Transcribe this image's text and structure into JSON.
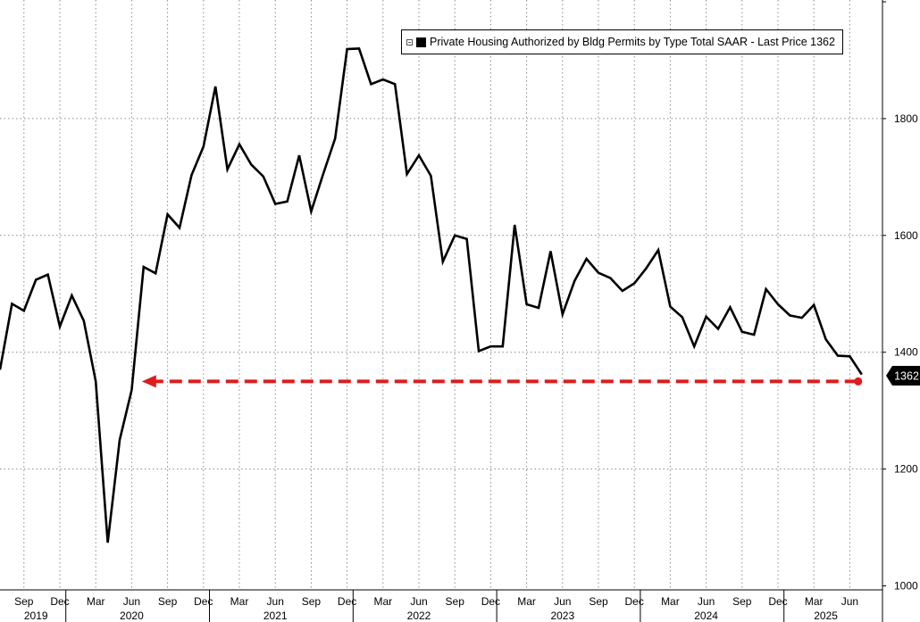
{
  "chart_data": {
    "type": "line",
    "legend_text": "Private Housing Authorized by Bldg Permits by Type Total SAAR - Last Price 1362",
    "last_value_label": "1362",
    "series_color": "#000000",
    "annotation_color": "#dd1c1c",
    "ylim": [
      1000,
      2000
    ],
    "y_ticks": [
      "1000",
      "1200",
      "1400",
      "1600",
      "1800"
    ],
    "x_month_ticks": [
      {
        "label": "Sep",
        "date": "2019-09"
      },
      {
        "label": "Dec",
        "date": "2019-12"
      },
      {
        "label": "Mar",
        "date": "2020-03"
      },
      {
        "label": "Jun",
        "date": "2020-06"
      },
      {
        "label": "Sep",
        "date": "2020-09"
      },
      {
        "label": "Dec",
        "date": "2020-12"
      },
      {
        "label": "Mar",
        "date": "2021-03"
      },
      {
        "label": "Jun",
        "date": "2021-06"
      },
      {
        "label": "Sep",
        "date": "2021-09"
      },
      {
        "label": "Dec",
        "date": "2021-12"
      },
      {
        "label": "Mar",
        "date": "2022-03"
      },
      {
        "label": "Jun",
        "date": "2022-06"
      },
      {
        "label": "Sep",
        "date": "2022-09"
      },
      {
        "label": "Dec",
        "date": "2022-12"
      },
      {
        "label": "Mar",
        "date": "2023-03"
      },
      {
        "label": "Jun",
        "date": "2023-06"
      },
      {
        "label": "Sep",
        "date": "2023-09"
      },
      {
        "label": "Dec",
        "date": "2023-12"
      },
      {
        "label": "Mar",
        "date": "2024-03"
      },
      {
        "label": "Jun",
        "date": "2024-06"
      },
      {
        "label": "Sep",
        "date": "2024-09"
      },
      {
        "label": "Dec",
        "date": "2024-12"
      },
      {
        "label": "Mar",
        "date": "2025-03"
      },
      {
        "label": "Jun",
        "date": "2025-06"
      }
    ],
    "x_year_labels": [
      {
        "label": "2019",
        "date": "2019-10"
      },
      {
        "label": "2020",
        "date": "2020-06"
      },
      {
        "label": "2021",
        "date": "2021-06"
      },
      {
        "label": "2022",
        "date": "2022-06"
      },
      {
        "label": "2023",
        "date": "2023-06"
      },
      {
        "label": "2024",
        "date": "2024-06"
      },
      {
        "label": "2025",
        "date": "2025-04"
      }
    ],
    "year_boundaries": [
      "2020-01",
      "2021-01",
      "2022-01",
      "2023-01",
      "2024-01",
      "2025-01"
    ],
    "series": [
      {
        "x": [
          "2019-07",
          "2019-08",
          "2019-09",
          "2019-10",
          "2019-11",
          "2019-12",
          "2020-01",
          "2020-02",
          "2020-03",
          "2020-04",
          "2020-05",
          "2020-06",
          "2020-07",
          "2020-08",
          "2020-09",
          "2020-10",
          "2020-11",
          "2020-12",
          "2021-01",
          "2021-02",
          "2021-03",
          "2021-04",
          "2021-05",
          "2021-06",
          "2021-07",
          "2021-08",
          "2021-09",
          "2021-10",
          "2021-11",
          "2021-12",
          "2022-01",
          "2022-02",
          "2022-03",
          "2022-04",
          "2022-05",
          "2022-06",
          "2022-07",
          "2022-08",
          "2022-09",
          "2022-10",
          "2022-11",
          "2022-12",
          "2023-01",
          "2023-02",
          "2023-03",
          "2023-04",
          "2023-05",
          "2023-06",
          "2023-07",
          "2023-08",
          "2023-09",
          "2023-10",
          "2023-11",
          "2023-12",
          "2024-01",
          "2024-02",
          "2024-03",
          "2024-04",
          "2024-05",
          "2024-06",
          "2024-07",
          "2024-08",
          "2024-09",
          "2024-10",
          "2024-11",
          "2024-12",
          "2025-01",
          "2025-02",
          "2025-03",
          "2025-04",
          "2025-05",
          "2025-06",
          "2025-07"
        ],
        "values": [
          1370,
          1483,
          1471,
          1524,
          1533,
          1444,
          1497,
          1454,
          1350,
          1074,
          1250,
          1335,
          1546,
          1535,
          1636,
          1613,
          1703,
          1752,
          1855,
          1713,
          1756,
          1721,
          1701,
          1654,
          1658,
          1737,
          1641,
          1705,
          1766,
          1919,
          1920,
          1859,
          1867,
          1859,
          1705,
          1737,
          1702,
          1555,
          1600,
          1594,
          1402,
          1410,
          1410,
          1618,
          1482,
          1476,
          1573,
          1465,
          1522,
          1560,
          1536,
          1527,
          1505,
          1518,
          1544,
          1575,
          1478,
          1460,
          1410,
          1461,
          1440,
          1477,
          1435,
          1430,
          1508,
          1482,
          1463,
          1459,
          1481,
          1422,
          1394,
          1393,
          1362
        ]
      }
    ],
    "annotation_arrow": {
      "from": "2025-07",
      "to": "2020-07",
      "value": 1350
    }
  }
}
